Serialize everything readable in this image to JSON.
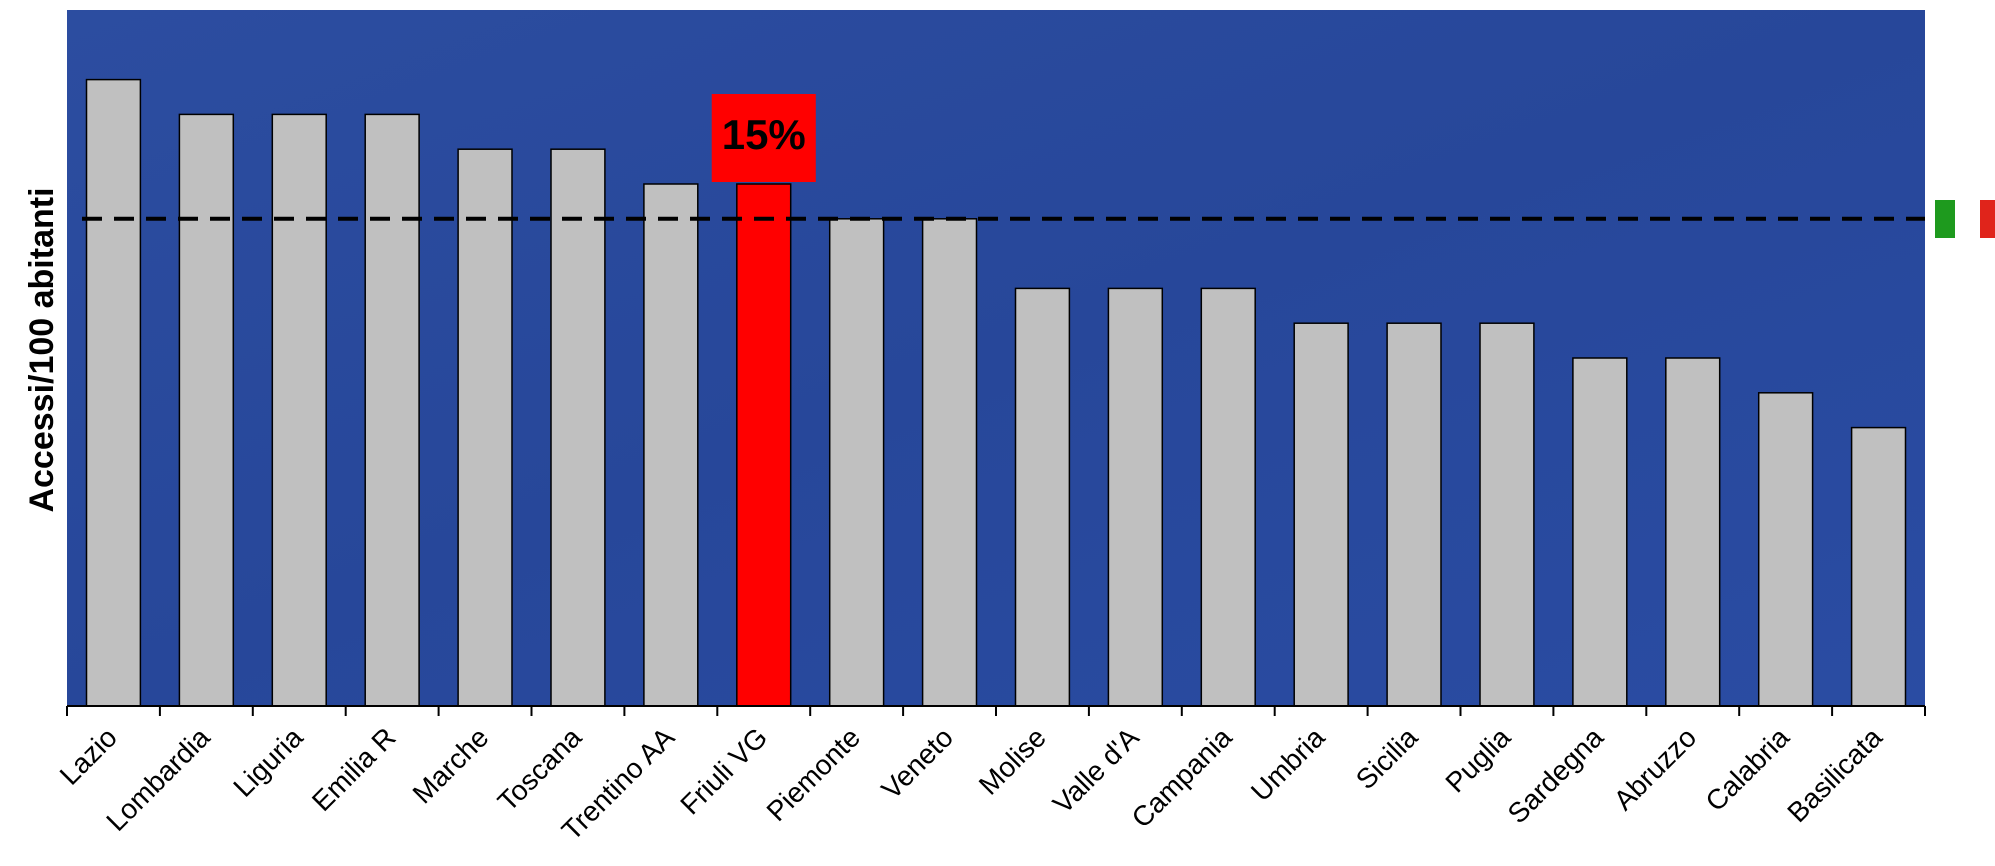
{
  "chart_data": {
    "type": "bar",
    "y_label": "Accessi/100 abitanti",
    "categories": [
      "Lazio",
      "Lombardia",
      "Liguria",
      "Emilia R",
      "Marche",
      "Toscana",
      "Trentino AA",
      "Friuli VG",
      "Piemonte",
      "Veneto",
      "Molise",
      "Valle d'A",
      "Campania",
      "Umbria",
      "Sicilia",
      "Puglia",
      "Sardegna",
      "Abruzzo",
      "Calabria",
      "Basilicata"
    ],
    "values": [
      18,
      17,
      17,
      17,
      16,
      16,
      15,
      15,
      14,
      14,
      12,
      12,
      12,
      11,
      11,
      11,
      10,
      10,
      9,
      8
    ],
    "value_labels": [
      null,
      null,
      null,
      null,
      null,
      null,
      null,
      "15%",
      null,
      null,
      null,
      null,
      null,
      null,
      null,
      null,
      null,
      null,
      null,
      null
    ],
    "colors": [
      "#c0c0c0",
      "#c0c0c0",
      "#c0c0c0",
      "#c0c0c0",
      "#c0c0c0",
      "#c0c0c0",
      "#c0c0c0",
      "#ff0000",
      "#c0c0c0",
      "#c0c0c0",
      "#c0c0c0",
      "#c0c0c0",
      "#c0c0c0",
      "#c0c0c0",
      "#c0c0c0",
      "#c0c0c0",
      "#c0c0c0",
      "#c0c0c0",
      "#c0c0c0",
      "#c0c0c0"
    ],
    "reference_line": 14,
    "ylim": [
      0,
      20
    ]
  }
}
